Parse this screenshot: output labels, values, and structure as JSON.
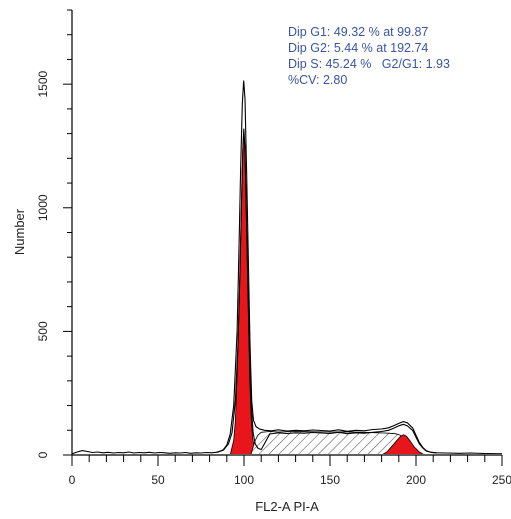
{
  "chart_data": {
    "type": "area",
    "xlabel": "FL2-A PI-A",
    "ylabel": "Number",
    "xlim": [
      0,
      250
    ],
    "ylim": [
      0,
      1800
    ],
    "x_ticks": [
      0,
      50,
      100,
      150,
      200,
      250
    ],
    "y_ticks": [
      0,
      500,
      1000,
      1500
    ],
    "x_minor_step": 10,
    "grid": false,
    "stats": {
      "line1": "Dip G1: 49.32 % at 99.87",
      "line2": "Dip G2: 5.44 % at 192.74",
      "line3": "Dip S: 45.24 %   G2/G1: 1.93",
      "line4": "%CV: 2.80"
    },
    "colors": {
      "peak_fill": "#e8161b",
      "s_phase_hatch": "#555555",
      "histogram_line": "#000000",
      "stats_text": "#3a55a4"
    },
    "series": [
      {
        "values": [
          [
            0,
            5
          ],
          [
            3,
            12
          ],
          [
            6,
            18
          ],
          [
            9,
            14
          ],
          [
            12,
            10
          ],
          [
            15,
            12
          ],
          [
            18,
            9
          ],
          [
            21,
            11
          ],
          [
            24,
            8
          ],
          [
            27,
            10
          ],
          [
            30,
            9
          ],
          [
            33,
            12
          ],
          [
            36,
            8
          ],
          [
            39,
            10
          ],
          [
            42,
            9
          ],
          [
            45,
            11
          ],
          [
            48,
            8
          ],
          [
            51,
            10
          ],
          [
            54,
            9
          ],
          [
            57,
            7
          ],
          [
            60,
            9
          ],
          [
            63,
            8
          ],
          [
            66,
            10
          ],
          [
            69,
            7
          ],
          [
            72,
            9
          ],
          [
            75,
            8
          ],
          [
            78,
            10
          ],
          [
            81,
            9
          ],
          [
            84,
            11
          ],
          [
            86,
            15
          ],
          [
            88,
            22
          ],
          [
            90,
            40
          ],
          [
            92,
            85
          ],
          [
            94,
            200
          ],
          [
            96,
            500
          ],
          [
            97,
            800
          ],
          [
            98,
            1150
          ],
          [
            99,
            1420
          ],
          [
            99.8,
            1515
          ],
          [
            100.6,
            1440
          ],
          [
            101.5,
            1150
          ],
          [
            102.5,
            800
          ],
          [
            103.5,
            450
          ],
          [
            104.5,
            220
          ],
          [
            105.5,
            140
          ],
          [
            107,
            115
          ],
          [
            109,
            105
          ],
          [
            112,
            100
          ],
          [
            116,
            98
          ],
          [
            120,
            102
          ],
          [
            125,
            97
          ],
          [
            130,
            100
          ],
          [
            135,
            98
          ],
          [
            140,
            101
          ],
          [
            145,
            99
          ],
          [
            150,
            97
          ],
          [
            155,
            102
          ],
          [
            160,
            96
          ],
          [
            165,
            100
          ],
          [
            170,
            98
          ],
          [
            175,
            103
          ],
          [
            180,
            105
          ],
          [
            184,
            110
          ],
          [
            187,
            118
          ],
          [
            190,
            128
          ],
          [
            192.7,
            135
          ],
          [
            195,
            130
          ],
          [
            198,
            110
          ],
          [
            200,
            80
          ],
          [
            202,
            50
          ],
          [
            204,
            30
          ],
          [
            206,
            18
          ],
          [
            208,
            12
          ],
          [
            212,
            9
          ],
          [
            218,
            8
          ],
          [
            225,
            7
          ],
          [
            232,
            8
          ],
          [
            240,
            6
          ],
          [
            250,
            5
          ]
        ]
      },
      {
        "values": [
          [
            84,
            11
          ],
          [
            88,
            20
          ],
          [
            91,
            45
          ],
          [
            93,
            90
          ],
          [
            95,
            220
          ],
          [
            96.5,
            450
          ],
          [
            97.5,
            700
          ],
          [
            98.5,
            1000
          ],
          [
            99.3,
            1230
          ],
          [
            99.87,
            1320
          ],
          [
            100.5,
            1250
          ],
          [
            101.3,
            1000
          ],
          [
            102.2,
            700
          ],
          [
            103.2,
            420
          ],
          [
            104.2,
            200
          ],
          [
            105.3,
            90
          ],
          [
            106.5,
            45
          ],
          [
            108,
            28
          ],
          [
            110,
            22
          ],
          [
            115,
            85
          ],
          [
            120,
            90
          ],
          [
            125,
            87
          ],
          [
            130,
            90
          ],
          [
            135,
            88
          ],
          [
            140,
            91
          ],
          [
            145,
            89
          ],
          [
            150,
            87
          ],
          [
            155,
            92
          ],
          [
            160,
            86
          ],
          [
            165,
            90
          ],
          [
            170,
            88
          ],
          [
            175,
            92
          ],
          [
            180,
            95
          ],
          [
            184,
            100
          ],
          [
            187,
            108
          ],
          [
            190,
            118
          ],
          [
            192.7,
            124
          ],
          [
            195,
            118
          ],
          [
            198,
            100
          ],
          [
            200,
            72
          ],
          [
            202,
            45
          ],
          [
            204,
            28
          ],
          [
            206,
            16
          ],
          [
            209,
            10
          ],
          [
            212,
            8
          ]
        ]
      }
    ],
    "components": [
      {
        "phase": "G1",
        "values": [
          [
            92,
            0
          ],
          [
            94,
            60
          ],
          [
            95,
            140
          ],
          [
            96,
            320
          ],
          [
            97,
            560
          ],
          [
            98,
            850
          ],
          [
            98.8,
            1100
          ],
          [
            99.4,
            1260
          ],
          [
            99.87,
            1310
          ],
          [
            100.4,
            1250
          ],
          [
            101.1,
            1080
          ],
          [
            101.8,
            820
          ],
          [
            102.6,
            540
          ],
          [
            103.4,
            300
          ],
          [
            104.2,
            150
          ],
          [
            105,
            70
          ],
          [
            106,
            30
          ],
          [
            108,
            0
          ]
        ]
      },
      {
        "phase": "S",
        "values": [
          [
            104,
            0
          ],
          [
            106,
            50
          ],
          [
            108,
            80
          ],
          [
            110,
            92
          ],
          [
            115,
            95
          ],
          [
            120,
            93
          ],
          [
            130,
            95
          ],
          [
            140,
            94
          ],
          [
            150,
            93
          ],
          [
            160,
            94
          ],
          [
            170,
            92
          ],
          [
            178,
            90
          ],
          [
            184,
            88
          ],
          [
            188,
            86
          ],
          [
            191,
            80
          ],
          [
            194,
            60
          ],
          [
            196,
            40
          ],
          [
            198,
            20
          ],
          [
            200,
            0
          ]
        ]
      },
      {
        "phase": "G2",
        "values": [
          [
            180,
            0
          ],
          [
            183,
            12
          ],
          [
            186,
            35
          ],
          [
            189,
            60
          ],
          [
            191,
            75
          ],
          [
            192.74,
            82
          ],
          [
            194.5,
            76
          ],
          [
            196.5,
            58
          ],
          [
            199,
            32
          ],
          [
            202,
            12
          ],
          [
            205,
            0
          ]
        ]
      }
    ]
  }
}
